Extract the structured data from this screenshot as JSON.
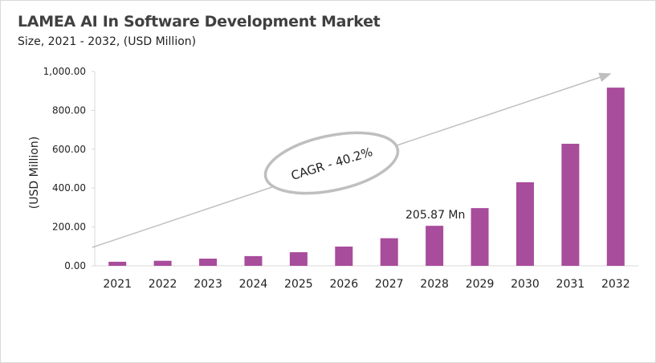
{
  "chart_data": {
    "type": "bar",
    "title": "LAMEA AI In Software Development Market",
    "subtitle": "Size, 2021 - 2032, (USD Million)",
    "xlabel": "",
    "ylabel": "(USD Million)",
    "categories": [
      "2021",
      "2022",
      "2023",
      "2024",
      "2025",
      "2026",
      "2027",
      "2028",
      "2029",
      "2030",
      "2031",
      "2032"
    ],
    "values": [
      21,
      26,
      37,
      50,
      70,
      99,
      142,
      205.87,
      297,
      430,
      628,
      917
    ],
    "ylim": [
      0,
      1000
    ],
    "yticks": [
      "0.00",
      "200.00",
      "400.00",
      "600.00",
      "800.00",
      "1,000.00"
    ],
    "grid": false,
    "bar_color": "#a84c9c",
    "annotations": {
      "cagr": "CAGR - 40.2%",
      "value_label": "205.87 Mn"
    }
  }
}
